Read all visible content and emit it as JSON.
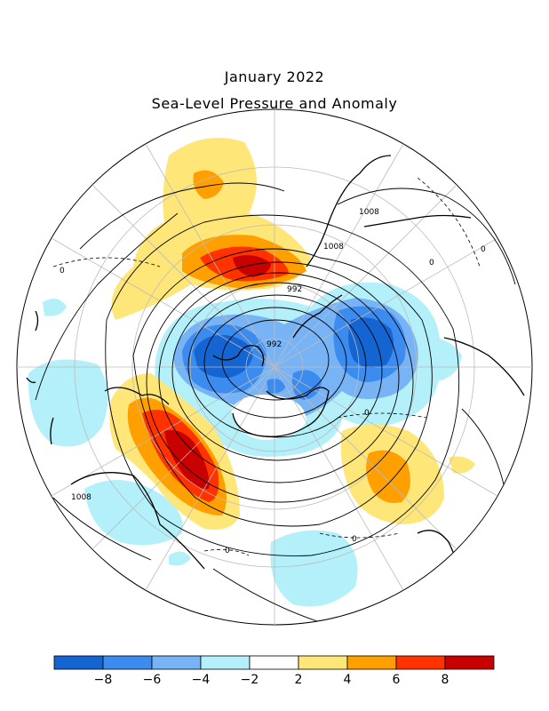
{
  "title": "January 2022",
  "subtitle": "Sea-Level Pressure and Anomaly",
  "map": {
    "projection": "north polar stereographic",
    "contour_labels": [
      "1008",
      "1008",
      "992",
      "992",
      "0",
      "0",
      "0",
      "0",
      "0",
      "0",
      "1008"
    ],
    "anomaly_regions": [
      {
        "region": "north-atlantic-iceland",
        "sign": "positive",
        "peak": 8
      },
      {
        "region": "north-pacific-gulf-of-alaska",
        "sign": "positive",
        "peak": 8
      },
      {
        "region": "northern-siberia-asia",
        "sign": "positive",
        "peak": 6
      },
      {
        "region": "greenland-north-atlantic-europe",
        "sign": "negative",
        "peak": -8
      },
      {
        "region": "arctic-siberia",
        "sign": "negative",
        "peak": -8
      },
      {
        "region": "arctic-ocean-center",
        "sign": "negative",
        "peak": -4
      },
      {
        "region": "eastern-north-america",
        "sign": "negative",
        "peak": -2
      },
      {
        "region": "western-north-america",
        "sign": "negative",
        "peak": -2
      }
    ]
  },
  "colorbar": {
    "colors": [
      "#1464d2",
      "#3c8cf0",
      "#78b4f5",
      "#b4f0fa",
      "#ffffff",
      "#ffe678",
      "#ffa000",
      "#ff3200",
      "#c80000"
    ],
    "tick_labels": [
      "-8",
      "-6",
      "-4",
      "-2",
      "2",
      "4",
      "6",
      "8"
    ],
    "tick_values": [
      -8,
      -6,
      -4,
      -2,
      2,
      4,
      6,
      8
    ]
  }
}
